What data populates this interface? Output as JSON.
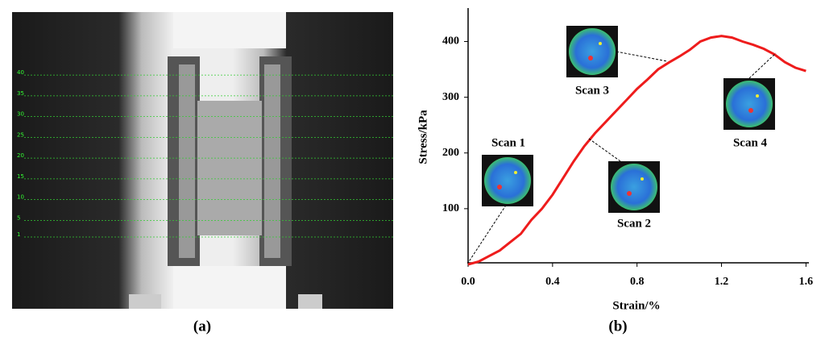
{
  "panel_a": {
    "scale_labels": [
      40,
      35,
      30,
      25,
      20,
      15,
      10,
      5,
      1
    ],
    "caption": "(a)"
  },
  "panel_b": {
    "caption": "(b)"
  },
  "chart_data": {
    "type": "line",
    "x_label": "Strain/%",
    "y_label": "Stress/kPa",
    "x": [
      0,
      0.05,
      0.1,
      0.15,
      0.2,
      0.25,
      0.3,
      0.35,
      0.4,
      0.45,
      0.5,
      0.55,
      0.6,
      0.65,
      0.7,
      0.75,
      0.8,
      0.85,
      0.9,
      0.95,
      1.0,
      1.05,
      1.1,
      1.15,
      1.2,
      1.25,
      1.3,
      1.35,
      1.4,
      1.45,
      1.5,
      1.55,
      1.6
    ],
    "series": [
      {
        "color": "#ee1c1c",
        "values": [
          0,
          5,
          15,
          25,
          40,
          55,
          80,
          100,
          125,
          155,
          185,
          212,
          235,
          255,
          275,
          295,
          315,
          332,
          350,
          362,
          373,
          385,
          400,
          407,
          410,
          407,
          400,
          394,
          387,
          377,
          363,
          353,
          347
        ]
      }
    ],
    "xlim": [
      0,
      1.61
    ],
    "ylim": [
      0,
      460
    ],
    "xticks": [
      {
        "value": 0,
        "label": "0.0"
      },
      0.4,
      0.8,
      1.2,
      1.6
    ],
    "yticks": [
      100,
      200,
      300,
      400
    ],
    "annotations": [
      "Scan 1",
      "Scan 2",
      "Scan 3",
      "Scan 4"
    ]
  }
}
